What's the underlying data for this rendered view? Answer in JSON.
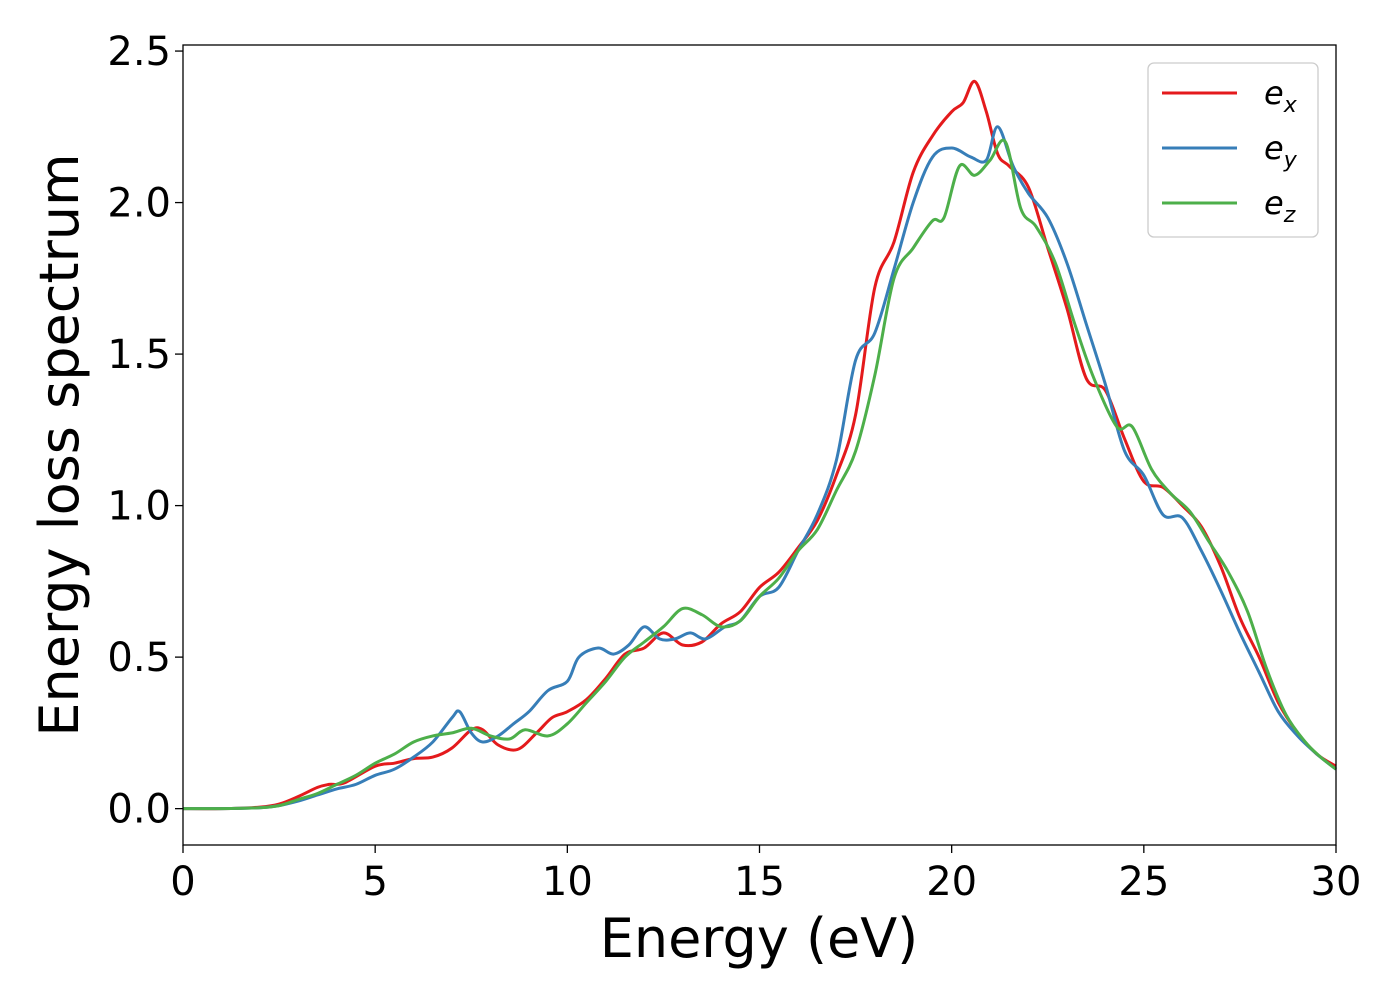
{
  "chart_data": {
    "type": "line",
    "xlabel": "Energy (eV)",
    "ylabel": "Energy loss spectrum",
    "xlim": [
      0,
      30
    ],
    "ylim": [
      -0.12,
      2.52
    ],
    "xticks": [
      0,
      5,
      10,
      15,
      20,
      25,
      30
    ],
    "xtick_labels": [
      "0",
      "5",
      "10",
      "15",
      "20",
      "25",
      "30"
    ],
    "yticks": [
      0.0,
      0.5,
      1.0,
      1.5,
      2.0,
      2.5
    ],
    "ytick_labels": [
      "0.0",
      "0.5",
      "1.0",
      "1.5",
      "2.0",
      "2.5"
    ],
    "grid": false,
    "legend_position": "top-right",
    "series": [
      {
        "name": "e",
        "subscript": "x",
        "color": "#e41a1c",
        "points": [
          [
            0,
            0
          ],
          [
            1,
            0
          ],
          [
            2,
            0.005
          ],
          [
            2.5,
            0.015
          ],
          [
            3,
            0.04
          ],
          [
            3.5,
            0.07
          ],
          [
            3.8,
            0.08
          ],
          [
            4.2,
            0.085
          ],
          [
            5,
            0.14
          ],
          [
            5.5,
            0.15
          ],
          [
            6,
            0.165
          ],
          [
            6.5,
            0.17
          ],
          [
            7,
            0.2
          ],
          [
            7.5,
            0.26
          ],
          [
            7.8,
            0.26
          ],
          [
            8.2,
            0.21
          ],
          [
            8.7,
            0.195
          ],
          [
            9.2,
            0.25
          ],
          [
            9.6,
            0.3
          ],
          [
            10,
            0.32
          ],
          [
            10.5,
            0.36
          ],
          [
            11,
            0.43
          ],
          [
            11.5,
            0.51
          ],
          [
            12,
            0.53
          ],
          [
            12.5,
            0.58
          ],
          [
            13,
            0.54
          ],
          [
            13.5,
            0.55
          ],
          [
            14,
            0.61
          ],
          [
            14.5,
            0.65
          ],
          [
            15,
            0.73
          ],
          [
            15.5,
            0.78
          ],
          [
            16,
            0.86
          ],
          [
            16.5,
            0.95
          ],
          [
            17,
            1.1
          ],
          [
            17.5,
            1.3
          ],
          [
            18,
            1.72
          ],
          [
            18.5,
            1.87
          ],
          [
            19,
            2.1
          ],
          [
            19.5,
            2.22
          ],
          [
            20,
            2.3
          ],
          [
            20.3,
            2.33
          ],
          [
            20.6,
            2.4
          ],
          [
            20.9,
            2.3
          ],
          [
            21.2,
            2.16
          ],
          [
            21.5,
            2.12
          ],
          [
            22,
            2.05
          ],
          [
            22.5,
            1.85
          ],
          [
            23,
            1.65
          ],
          [
            23.5,
            1.42
          ],
          [
            24,
            1.38
          ],
          [
            24.5,
            1.22
          ],
          [
            25,
            1.08
          ],
          [
            25.5,
            1.06
          ],
          [
            26,
            1.0
          ],
          [
            26.5,
            0.93
          ],
          [
            27,
            0.8
          ],
          [
            27.5,
            0.63
          ],
          [
            28,
            0.5
          ],
          [
            28.5,
            0.35
          ],
          [
            29,
            0.25
          ],
          [
            29.5,
            0.18
          ],
          [
            30,
            0.14
          ]
        ]
      },
      {
        "name": "e",
        "subscript": "y",
        "color": "#377eb8",
        "points": [
          [
            0,
            0
          ],
          [
            1,
            0
          ],
          [
            2,
            0.003
          ],
          [
            2.5,
            0.01
          ],
          [
            3,
            0.025
          ],
          [
            3.5,
            0.045
          ],
          [
            4,
            0.065
          ],
          [
            4.5,
            0.08
          ],
          [
            5,
            0.11
          ],
          [
            5.5,
            0.13
          ],
          [
            6,
            0.17
          ],
          [
            6.5,
            0.22
          ],
          [
            7,
            0.3
          ],
          [
            7.2,
            0.32
          ],
          [
            7.5,
            0.25
          ],
          [
            7.8,
            0.22
          ],
          [
            8.2,
            0.24
          ],
          [
            8.6,
            0.28
          ],
          [
            9,
            0.32
          ],
          [
            9.5,
            0.39
          ],
          [
            10,
            0.42
          ],
          [
            10.3,
            0.5
          ],
          [
            10.8,
            0.53
          ],
          [
            11.2,
            0.51
          ],
          [
            11.6,
            0.54
          ],
          [
            12,
            0.6
          ],
          [
            12.4,
            0.56
          ],
          [
            12.8,
            0.56
          ],
          [
            13.2,
            0.58
          ],
          [
            13.6,
            0.56
          ],
          [
            14.1,
            0.6
          ],
          [
            14.5,
            0.62
          ],
          [
            15,
            0.7
          ],
          [
            15.5,
            0.73
          ],
          [
            16,
            0.85
          ],
          [
            16.5,
            0.97
          ],
          [
            17,
            1.15
          ],
          [
            17.5,
            1.48
          ],
          [
            18,
            1.57
          ],
          [
            18.5,
            1.78
          ],
          [
            19,
            2.0
          ],
          [
            19.5,
            2.15
          ],
          [
            20,
            2.18
          ],
          [
            20.5,
            2.15
          ],
          [
            20.9,
            2.14
          ],
          [
            21.2,
            2.25
          ],
          [
            21.6,
            2.12
          ],
          [
            22,
            2.03
          ],
          [
            22.5,
            1.95
          ],
          [
            23,
            1.8
          ],
          [
            23.5,
            1.6
          ],
          [
            24,
            1.4
          ],
          [
            24.5,
            1.18
          ],
          [
            25,
            1.1
          ],
          [
            25.5,
            0.97
          ],
          [
            26,
            0.96
          ],
          [
            26.5,
            0.85
          ],
          [
            27,
            0.72
          ],
          [
            27.5,
            0.58
          ],
          [
            28,
            0.45
          ],
          [
            28.5,
            0.32
          ],
          [
            29,
            0.24
          ],
          [
            29.5,
            0.18
          ],
          [
            30,
            0.13
          ]
        ]
      },
      {
        "name": "e",
        "subscript": "z",
        "color": "#4daf4a",
        "points": [
          [
            0,
            0
          ],
          [
            1,
            0
          ],
          [
            2,
            0.003
          ],
          [
            2.5,
            0.01
          ],
          [
            3,
            0.03
          ],
          [
            3.5,
            0.05
          ],
          [
            4,
            0.08
          ],
          [
            4.5,
            0.11
          ],
          [
            5,
            0.15
          ],
          [
            5.5,
            0.18
          ],
          [
            6,
            0.22
          ],
          [
            6.5,
            0.24
          ],
          [
            7,
            0.25
          ],
          [
            7.5,
            0.265
          ],
          [
            8,
            0.24
          ],
          [
            8.5,
            0.23
          ],
          [
            8.9,
            0.26
          ],
          [
            9.5,
            0.24
          ],
          [
            10,
            0.28
          ],
          [
            10.5,
            0.35
          ],
          [
            11,
            0.42
          ],
          [
            11.5,
            0.5
          ],
          [
            12,
            0.55
          ],
          [
            12.5,
            0.6
          ],
          [
            13,
            0.66
          ],
          [
            13.5,
            0.64
          ],
          [
            14,
            0.6
          ],
          [
            14.5,
            0.62
          ],
          [
            15,
            0.7
          ],
          [
            15.5,
            0.76
          ],
          [
            16,
            0.85
          ],
          [
            16.5,
            0.92
          ],
          [
            17,
            1.05
          ],
          [
            17.5,
            1.18
          ],
          [
            18,
            1.43
          ],
          [
            18.5,
            1.75
          ],
          [
            19,
            1.85
          ],
          [
            19.5,
            1.94
          ],
          [
            19.8,
            1.95
          ],
          [
            20.2,
            2.12
          ],
          [
            20.6,
            2.09
          ],
          [
            21,
            2.14
          ],
          [
            21.4,
            2.2
          ],
          [
            21.8,
            1.98
          ],
          [
            22.2,
            1.92
          ],
          [
            22.7,
            1.8
          ],
          [
            23.2,
            1.6
          ],
          [
            23.7,
            1.42
          ],
          [
            24.3,
            1.26
          ],
          [
            24.7,
            1.26
          ],
          [
            25.2,
            1.12
          ],
          [
            25.7,
            1.04
          ],
          [
            26.2,
            0.98
          ],
          [
            26.7,
            0.88
          ],
          [
            27.2,
            0.78
          ],
          [
            27.7,
            0.65
          ],
          [
            28.2,
            0.46
          ],
          [
            28.7,
            0.31
          ],
          [
            29.2,
            0.22
          ],
          [
            29.6,
            0.17
          ],
          [
            30,
            0.13
          ]
        ]
      }
    ]
  }
}
